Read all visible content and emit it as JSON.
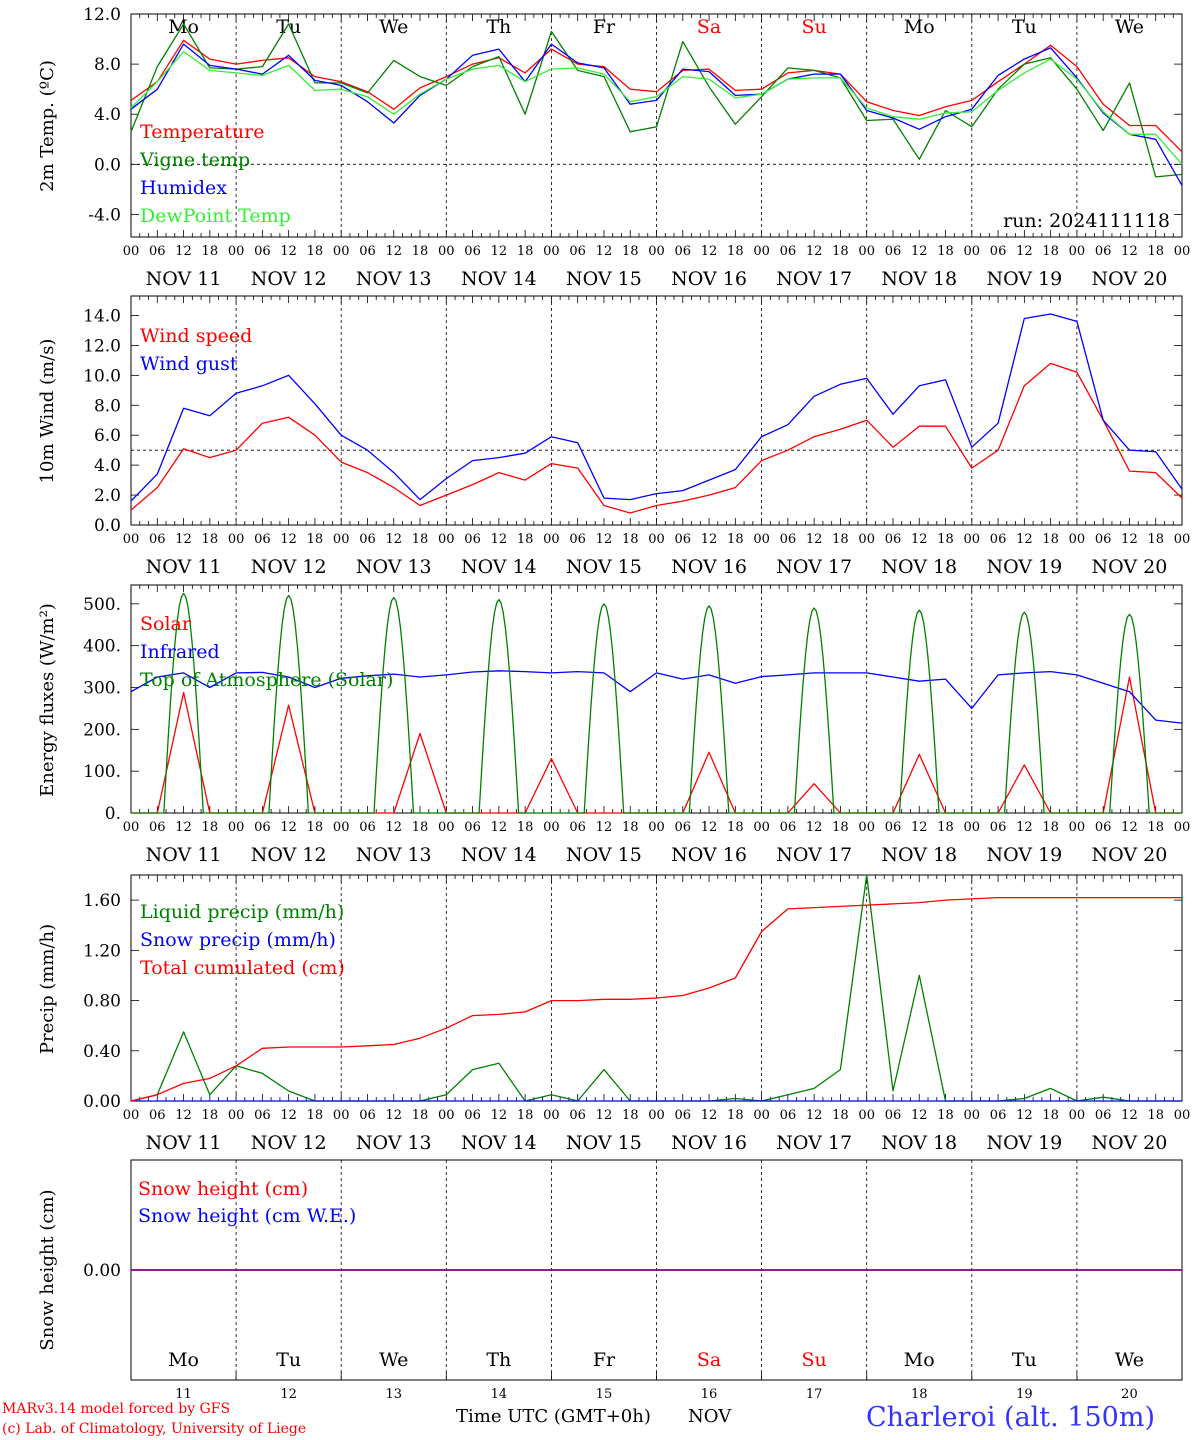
{
  "meta": {
    "credit_line1": "MARv3.14 model forced by GFS",
    "credit_line2": "(c) Lab. of Climatology, University of Liege",
    "xaxis_title": "Time UTC (GMT+0h)",
    "xaxis_month": "NOV",
    "station": "Charleroi (alt. 150m)"
  },
  "colors": {
    "red": "#ff0000",
    "darkgreen": "#008000",
    "blue": "#0000ff",
    "lightgreen": "#33ee33",
    "purple": "#800080",
    "black": "#000000"
  },
  "days": [
    "Mo",
    "Tu",
    "We",
    "Th",
    "Fr",
    "Sa",
    "Su",
    "Mo",
    "Tu",
    "We"
  ],
  "weekend_days": [
    5,
    6
  ],
  "day_numbers": [
    "11",
    "12",
    "13",
    "14",
    "15",
    "16",
    "17",
    "18",
    "19",
    "20"
  ],
  "date_labels": [
    "NOV 11",
    "NOV 12",
    "NOV 13",
    "NOV 14",
    "NOV 15",
    "NOV 16",
    "NOV 17",
    "NOV 18",
    "NOV 19",
    "NOV 20"
  ],
  "hour_labels": [
    "00",
    "06",
    "12",
    "18"
  ],
  "chart_data": [
    {
      "type": "line",
      "ylabel": "2m Temp. (ºC)",
      "yticks": [
        "12.0",
        "8.0",
        "4.0",
        "0.0",
        "-4.0"
      ],
      "ytick_values": [
        12,
        8,
        4,
        0,
        -4
      ],
      "ylim": [
        -5.8,
        12.0
      ],
      "dashed_ref": 0,
      "annotation": "run: 2024111118",
      "x_hours": [
        0,
        6,
        12,
        18,
        24,
        30,
        36,
        42,
        48,
        54,
        60,
        66,
        72,
        78,
        84,
        90,
        96,
        102,
        108,
        114,
        120,
        126,
        132,
        138,
        144,
        150,
        156,
        162,
        168,
        174,
        180,
        186,
        192,
        198,
        204,
        210,
        216,
        222,
        228,
        234,
        240
      ],
      "series": [
        {
          "name": "Temperature",
          "color": "red",
          "values": [
            5.1,
            6.6,
            9.9,
            8.4,
            8.0,
            8.3,
            8.5,
            7.0,
            6.6,
            5.8,
            4.4,
            6.1,
            7.0,
            8.0,
            8.5,
            7.3,
            9.2,
            8.0,
            7.8,
            6.0,
            5.8,
            7.5,
            7.6,
            5.9,
            6.0,
            7.3,
            7.5,
            7.2,
            5.0,
            4.3,
            3.9,
            4.6,
            5.1,
            6.6,
            8.0,
            9.5,
            7.8,
            4.8,
            3.1,
            3.1,
            1.0
          ]
        },
        {
          "name": "Vigne temp",
          "color": "darkgreen",
          "values": [
            2.6,
            7.8,
            11.2,
            7.7,
            7.6,
            7.8,
            11.2,
            6.5,
            6.5,
            5.7,
            8.3,
            7.0,
            6.3,
            7.8,
            8.6,
            4.0,
            10.6,
            7.5,
            7.0,
            2.6,
            3.0,
            9.8,
            6.2,
            3.2,
            5.4,
            7.7,
            7.5,
            6.9,
            3.5,
            3.6,
            0.4,
            4.3,
            3.0,
            6.0,
            8.0,
            8.5,
            6.0,
            2.7,
            6.5,
            -1.0,
            -0.8
          ]
        },
        {
          "name": "Humidex",
          "color": "blue",
          "values": [
            4.4,
            6.0,
            9.6,
            7.9,
            7.6,
            7.2,
            8.7,
            6.7,
            6.3,
            5.0,
            3.3,
            5.5,
            6.8,
            8.7,
            9.2,
            6.6,
            9.6,
            8.1,
            7.7,
            4.8,
            5.1,
            7.6,
            7.4,
            5.5,
            5.6,
            6.8,
            7.2,
            7.2,
            4.3,
            3.7,
            2.8,
            3.8,
            4.4,
            7.1,
            8.4,
            9.3,
            6.9,
            4.1,
            2.4,
            2.0,
            -1.7
          ]
        },
        {
          "name": "DewPoint Temp",
          "color": "lightgreen",
          "values": [
            4.5,
            6.6,
            9.0,
            7.5,
            7.3,
            7.1,
            7.9,
            5.9,
            6.0,
            5.4,
            4.0,
            5.6,
            6.8,
            7.6,
            7.9,
            6.6,
            7.6,
            7.7,
            7.2,
            5.0,
            5.4,
            7.0,
            6.8,
            5.3,
            5.6,
            6.8,
            6.9,
            6.9,
            4.5,
            3.8,
            3.6,
            4.1,
            4.2,
            5.9,
            7.3,
            8.4,
            6.8,
            4.2,
            2.4,
            2.4,
            0.0
          ]
        }
      ]
    },
    {
      "type": "line",
      "ylabel": "10m Wind (m/s)",
      "yticks": [
        "14.0",
        "12.0",
        "10.0",
        "8.0",
        "6.0",
        "4.0",
        "2.0",
        "0.0"
      ],
      "ytick_values": [
        14,
        12,
        10,
        8,
        6,
        4,
        2,
        0
      ],
      "ylim": [
        0,
        15.3
      ],
      "dashed_ref": 5,
      "x_hours": [
        0,
        6,
        12,
        18,
        24,
        30,
        36,
        42,
        48,
        54,
        60,
        66,
        72,
        78,
        84,
        90,
        96,
        102,
        108,
        114,
        120,
        126,
        132,
        138,
        144,
        150,
        156,
        162,
        168,
        174,
        180,
        186,
        192,
        198,
        204,
        210,
        216,
        222,
        228,
        234,
        240
      ],
      "series": [
        {
          "name": "Wind speed",
          "color": "red",
          "values": [
            1.0,
            2.5,
            5.1,
            4.5,
            5.0,
            6.8,
            7.2,
            6.0,
            4.2,
            3.5,
            2.5,
            1.3,
            2.0,
            2.7,
            3.5,
            3.0,
            4.1,
            3.8,
            1.3,
            0.8,
            1.3,
            1.6,
            2.0,
            2.5,
            4.3,
            5.0,
            5.9,
            6.4,
            7.0,
            5.2,
            6.6,
            6.6,
            3.8,
            5.0,
            9.3,
            10.8,
            10.2,
            7.0,
            3.6,
            3.5,
            1.8
          ]
        },
        {
          "name": "Wind gust",
          "color": "blue",
          "values": [
            1.6,
            3.4,
            7.8,
            7.3,
            8.8,
            9.3,
            10.0,
            8.1,
            6.0,
            5.0,
            3.5,
            1.7,
            3.1,
            4.3,
            4.5,
            4.8,
            5.9,
            5.5,
            1.8,
            1.7,
            2.1,
            2.3,
            3.0,
            3.7,
            5.9,
            6.7,
            8.6,
            9.4,
            9.8,
            7.4,
            9.3,
            9.7,
            5.2,
            6.8,
            13.8,
            14.1,
            13.6,
            7.0,
            5.0,
            4.9,
            2.4
          ]
        }
      ]
    },
    {
      "type": "line",
      "ylabel": "Energy fluxes (W/m²)",
      "yticks": [
        "500.",
        "400.",
        "300.",
        "200.",
        "100.",
        "0."
      ],
      "ytick_values": [
        500,
        400,
        300,
        200,
        100,
        0
      ],
      "ylim": [
        0,
        545
      ],
      "x_hours": [
        0,
        6,
        12,
        18,
        24,
        30,
        36,
        42,
        48,
        54,
        60,
        66,
        72,
        78,
        84,
        90,
        96,
        102,
        108,
        114,
        120,
        126,
        132,
        138,
        144,
        150,
        156,
        162,
        168,
        174,
        180,
        186,
        192,
        198,
        204,
        210,
        216,
        222,
        228,
        234,
        240
      ],
      "series": [
        {
          "name": "Solar",
          "color": "red",
          "values": [
            0,
            0,
            288,
            0,
            0,
            0,
            258,
            0,
            0,
            0,
            0,
            190,
            0,
            0,
            0,
            0,
            130,
            0,
            0,
            0,
            0,
            0,
            145,
            0,
            0,
            0,
            70,
            0,
            0,
            0,
            140,
            0,
            0,
            0,
            115,
            0,
            0,
            0,
            325,
            0,
            0
          ]
        },
        {
          "name": "Infrared",
          "color": "blue",
          "values": [
            290,
            325,
            335,
            300,
            335,
            336,
            325,
            300,
            322,
            328,
            332,
            325,
            330,
            337,
            340,
            338,
            335,
            338,
            335,
            290,
            335,
            320,
            330,
            310,
            326,
            330,
            335,
            335,
            335,
            325,
            315,
            320,
            250,
            330,
            335,
            338,
            330,
            310,
            290,
            222,
            215
          ]
        },
        {
          "name": "Top of Atmosphere (Solar)",
          "color": "darkgreen",
          "peak_values": [
            525,
            520,
            515,
            510,
            500,
            495,
            490,
            485,
            480,
            475
          ],
          "daylight_hours": [
            7.5,
            16.5
          ]
        }
      ]
    },
    {
      "type": "line",
      "ylabel": "Precip (mm/h)",
      "yticks": [
        "1.60",
        "1.20",
        "0.80",
        "0.40",
        "0.00"
      ],
      "ytick_values": [
        1.6,
        1.2,
        0.8,
        0.4,
        0.0
      ],
      "ylim": [
        0,
        1.8
      ],
      "x_hours": [
        0,
        6,
        12,
        18,
        24,
        30,
        36,
        42,
        48,
        54,
        60,
        66,
        72,
        78,
        84,
        90,
        96,
        102,
        108,
        114,
        120,
        126,
        132,
        138,
        144,
        150,
        156,
        162,
        168,
        174,
        180,
        186,
        192,
        198,
        204,
        210,
        216,
        222,
        228,
        234,
        240
      ],
      "series": [
        {
          "name": "Liquid precip (mm/h)",
          "color": "darkgreen",
          "values": [
            0,
            0.05,
            0.55,
            0.05,
            0.28,
            0.22,
            0.08,
            0,
            0,
            0,
            0,
            0,
            0.05,
            0.25,
            0.3,
            0.0,
            0.05,
            0.0,
            0.25,
            0.0,
            0.0,
            0.0,
            0.0,
            0.02,
            0.0,
            0.05,
            0.1,
            0.25,
            1.8,
            0.08,
            1.0,
            0.0,
            0.0,
            0.0,
            0.02,
            0.1,
            0.0,
            0.03,
            0.0,
            0.0,
            0.0
          ]
        },
        {
          "name": "Snow precip (mm/h)",
          "color": "blue",
          "values": [
            0,
            0,
            0,
            0,
            0,
            0,
            0,
            0,
            0,
            0,
            0,
            0,
            0,
            0,
            0,
            0,
            0,
            0,
            0,
            0,
            0,
            0,
            0,
            0,
            0,
            0,
            0,
            0,
            0,
            0,
            0,
            0,
            0,
            0,
            0,
            0,
            0,
            0,
            0,
            0,
            0
          ]
        },
        {
          "name": "Total cumulated (cm)",
          "color": "red",
          "values": [
            0.0,
            0.05,
            0.14,
            0.18,
            0.28,
            0.42,
            0.43,
            0.43,
            0.43,
            0.44,
            0.45,
            0.5,
            0.58,
            0.68,
            0.69,
            0.71,
            0.8,
            0.8,
            0.81,
            0.81,
            0.82,
            0.84,
            0.9,
            0.98,
            1.35,
            1.53,
            1.54,
            1.55,
            1.56,
            1.57,
            1.58,
            1.6,
            1.61,
            1.62,
            1.62,
            1.62,
            1.62,
            1.62,
            1.62,
            1.62,
            1.62
          ]
        }
      ]
    },
    {
      "type": "line",
      "ylabel": "Snow height (cm)",
      "yticks": [
        "0.00"
      ],
      "ytick_values": [
        0
      ],
      "ylim": [
        -1,
        1
      ],
      "x_hours": [
        0,
        240
      ],
      "series": [
        {
          "name": "Snow height (cm)",
          "color": "red",
          "values": [
            0,
            0
          ]
        },
        {
          "name": "Snow height (cm W.E.)",
          "color": "blue",
          "values": [
            0,
            0
          ]
        }
      ]
    }
  ]
}
